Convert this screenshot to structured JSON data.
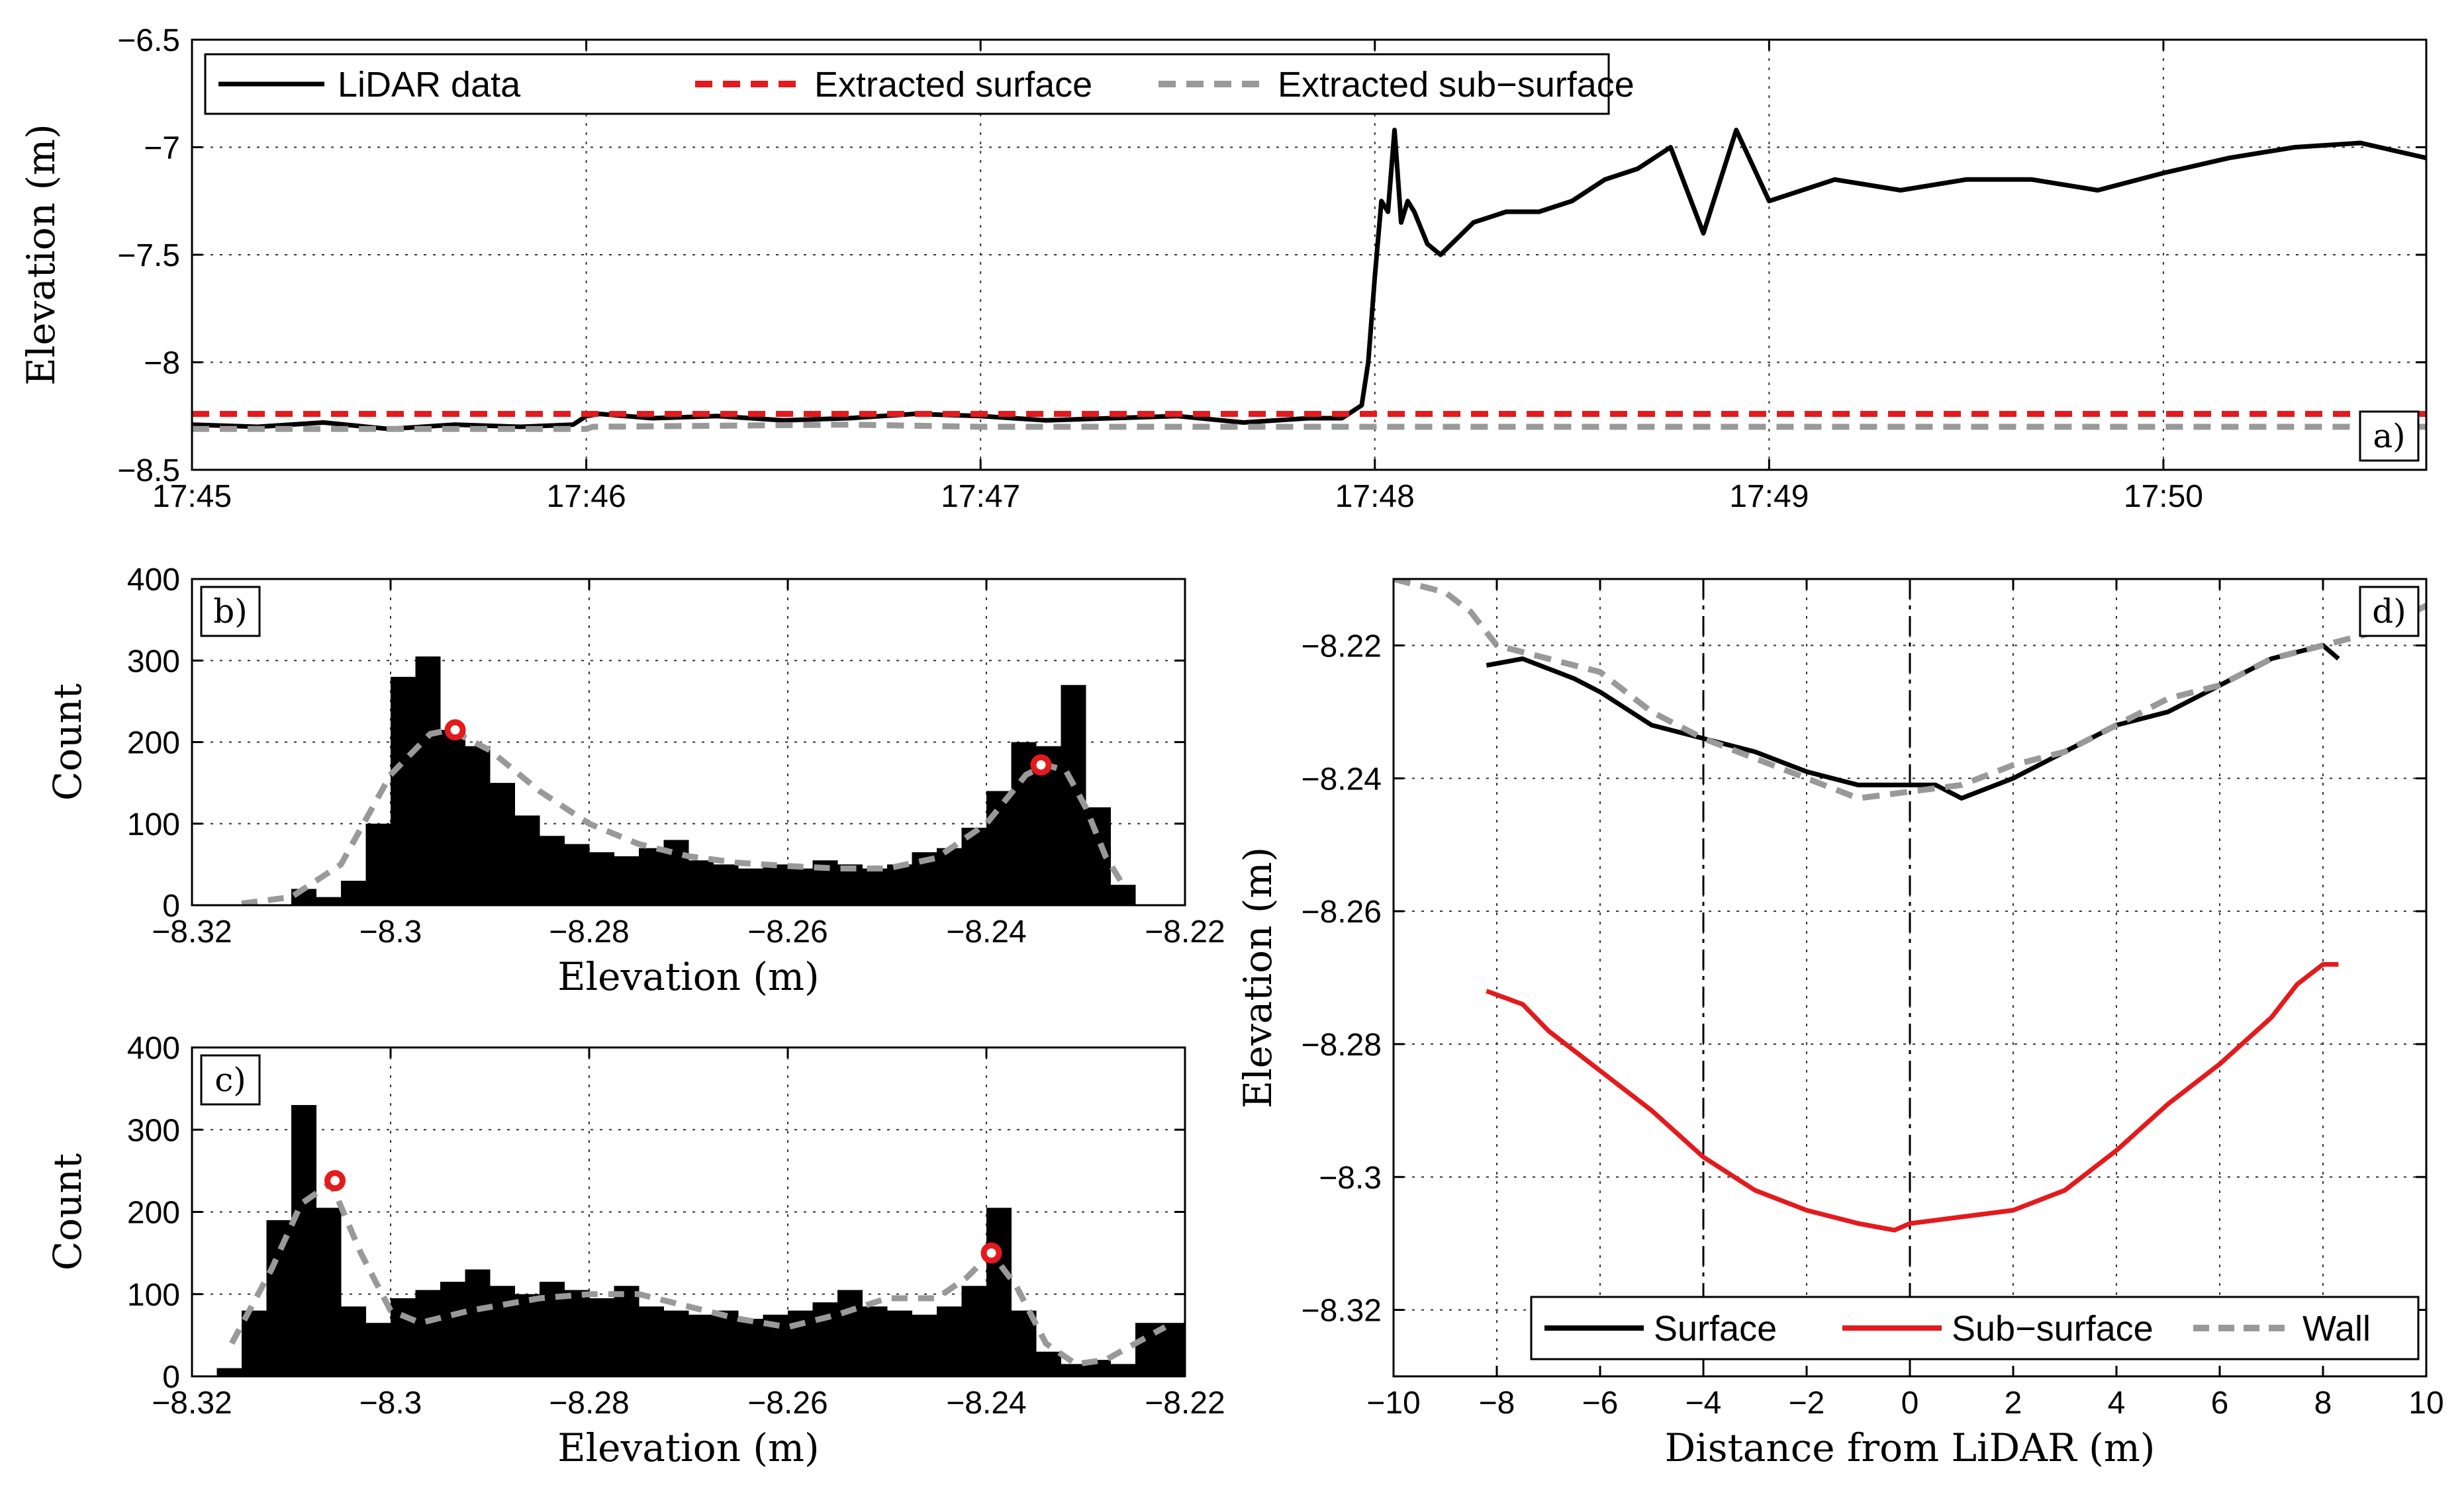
{
  "chart_data": [
    {
      "id": "a",
      "type": "line",
      "panel_label": "a)",
      "ylabel": "Elevation (m)",
      "xlabel": "",
      "xlim": [
        0,
        340
      ],
      "ylim": [
        -8.5,
        -6.5
      ],
      "grid": true,
      "x_ticks": [
        {
          "value": 0,
          "label": "17:45"
        },
        {
          "value": 60,
          "label": "17:46"
        },
        {
          "value": 120,
          "label": "17:47"
        },
        {
          "value": 180,
          "label": "17:48"
        },
        {
          "value": 240,
          "label": "17:49"
        },
        {
          "value": 300,
          "label": "17:50"
        }
      ],
      "y_ticks": [
        {
          "value": -6.5,
          "label": "−6.5"
        },
        {
          "value": -7,
          "label": "−7"
        },
        {
          "value": -7.5,
          "label": "−7.5"
        },
        {
          "value": -8,
          "label": "−8"
        },
        {
          "value": -8.5,
          "label": "−8.5"
        }
      ],
      "legend": {
        "position": "top-left",
        "entries": [
          {
            "name": "LiDAR data",
            "color": "#000000",
            "style": "solid"
          },
          {
            "name": "Extracted surface",
            "color": "#e41a1c",
            "style": "dashed"
          },
          {
            "name": "Extracted sub−surface",
            "color": "#999999",
            "style": "dashed"
          }
        ]
      },
      "series": [
        {
          "name": "LiDAR data",
          "color": "#000000",
          "style": "solid",
          "x": [
            0,
            10,
            20,
            30,
            40,
            50,
            58,
            60,
            62,
            70,
            80,
            90,
            100,
            110,
            120,
            130,
            140,
            150,
            160,
            170,
            175,
            178,
            179,
            180,
            181,
            182,
            183,
            184,
            185,
            186,
            188,
            190,
            195,
            200,
            205,
            210,
            215,
            220,
            225,
            230,
            235,
            240,
            250,
            260,
            270,
            280,
            290,
            300,
            310,
            320,
            330,
            340
          ],
          "y": [
            -8.29,
            -8.3,
            -8.28,
            -8.31,
            -8.29,
            -8.3,
            -8.29,
            -8.25,
            -8.24,
            -8.26,
            -8.25,
            -8.27,
            -8.26,
            -8.24,
            -8.25,
            -8.27,
            -8.26,
            -8.25,
            -8.28,
            -8.26,
            -8.26,
            -8.2,
            -8.0,
            -7.6,
            -7.25,
            -7.3,
            -6.92,
            -7.35,
            -7.25,
            -7.3,
            -7.45,
            -7.5,
            -7.35,
            -7.3,
            -7.3,
            -7.25,
            -7.15,
            -7.1,
            -7.0,
            -7.4,
            -6.92,
            -7.25,
            -7.15,
            -7.2,
            -7.15,
            -7.15,
            -7.2,
            -7.12,
            -7.05,
            -7.0,
            -6.98,
            -7.05
          ]
        },
        {
          "name": "Extracted surface",
          "color": "#e41a1c",
          "style": "dashed",
          "x": [
            0,
            340
          ],
          "y": [
            -8.24,
            -8.24
          ]
        },
        {
          "name": "Extracted sub−surface",
          "color": "#999999",
          "style": "dashed",
          "x": [
            0,
            60,
            61,
            100,
            120,
            150,
            180,
            340
          ],
          "y": [
            -8.31,
            -8.31,
            -8.3,
            -8.29,
            -8.3,
            -8.3,
            -8.3,
            -8.3
          ]
        }
      ]
    },
    {
      "id": "b",
      "type": "bar",
      "panel_label": "b)",
      "xlabel": "Elevation (m)",
      "ylabel": "Count",
      "xlim": [
        -8.32,
        -8.22
      ],
      "ylim": [
        0,
        400
      ],
      "grid": true,
      "x_ticks": [
        {
          "value": -8.32,
          "label": "−8.32"
        },
        {
          "value": -8.3,
          "label": "−8.3"
        },
        {
          "value": -8.28,
          "label": "−8.28"
        },
        {
          "value": -8.26,
          "label": "−8.26"
        },
        {
          "value": -8.24,
          "label": "−8.24"
        },
        {
          "value": -8.22,
          "label": "−8.22"
        }
      ],
      "y_ticks": [
        {
          "value": 0,
          "label": "0"
        },
        {
          "value": 100,
          "label": "100"
        },
        {
          "value": 200,
          "label": "200"
        },
        {
          "value": 300,
          "label": "300"
        },
        {
          "value": 400,
          "label": "400"
        }
      ],
      "bin_width": 0.0025,
      "bin_centers": [
        -8.30875,
        -8.30625,
        -8.30375,
        -8.30125,
        -8.29875,
        -8.29625,
        -8.29375,
        -8.29125,
        -8.28875,
        -8.28625,
        -8.28375,
        -8.28125,
        -8.27875,
        -8.27625,
        -8.27375,
        -8.27125,
        -8.26875,
        -8.26625,
        -8.26375,
        -8.26125,
        -8.25875,
        -8.25625,
        -8.25375,
        -8.25125,
        -8.24875,
        -8.24625,
        -8.24375,
        -8.24125,
        -8.23875,
        -8.23625,
        -8.23375,
        -8.23125,
        -8.22875,
        -8.22625
      ],
      "values": [
        20,
        10,
        30,
        100,
        280,
        305,
        215,
        195,
        150,
        110,
        85,
        75,
        65,
        60,
        70,
        80,
        55,
        50,
        45,
        50,
        45,
        55,
        50,
        45,
        50,
        65,
        70,
        95,
        140,
        200,
        195,
        270,
        120,
        25
      ],
      "density": {
        "color": "#999999",
        "style": "dashed",
        "x": [
          -8.315,
          -8.31,
          -8.305,
          -8.3,
          -8.296,
          -8.294,
          -8.29,
          -8.285,
          -8.28,
          -8.275,
          -8.27,
          -8.265,
          -8.26,
          -8.255,
          -8.25,
          -8.245,
          -8.24,
          -8.236,
          -8.234,
          -8.232,
          -8.23,
          -8.228,
          -8.226
        ],
        "y": [
          2,
          10,
          50,
          160,
          210,
          215,
          190,
          140,
          100,
          75,
          60,
          52,
          48,
          45,
          45,
          58,
          100,
          160,
          172,
          165,
          120,
          60,
          20
        ]
      },
      "peaks": [
        {
          "x": -8.2935,
          "y": 215
        },
        {
          "x": -8.2345,
          "y": 172
        }
      ]
    },
    {
      "id": "c",
      "type": "bar",
      "panel_label": "c)",
      "xlabel": "Elevation (m)",
      "ylabel": "Count",
      "xlim": [
        -8.32,
        -8.22
      ],
      "ylim": [
        0,
        400
      ],
      "grid": true,
      "x_ticks": [
        {
          "value": -8.32,
          "label": "−8.32"
        },
        {
          "value": -8.3,
          "label": "−8.3"
        },
        {
          "value": -8.28,
          "label": "−8.28"
        },
        {
          "value": -8.26,
          "label": "−8.26"
        },
        {
          "value": -8.24,
          "label": "−8.24"
        },
        {
          "value": -8.22,
          "label": "−8.22"
        }
      ],
      "y_ticks": [
        {
          "value": 0,
          "label": "0"
        },
        {
          "value": 100,
          "label": "100"
        },
        {
          "value": 200,
          "label": "200"
        },
        {
          "value": 300,
          "label": "300"
        },
        {
          "value": 400,
          "label": "400"
        }
      ],
      "bin_width": 0.0025,
      "bin_centers": [
        -8.31625,
        -8.31375,
        -8.31125,
        -8.30875,
        -8.30625,
        -8.30375,
        -8.30125,
        -8.29875,
        -8.29625,
        -8.29375,
        -8.29125,
        -8.28875,
        -8.28625,
        -8.28375,
        -8.28125,
        -8.27875,
        -8.27625,
        -8.27375,
        -8.27125,
        -8.26875,
        -8.26625,
        -8.26375,
        -8.26125,
        -8.25875,
        -8.25625,
        -8.25375,
        -8.25125,
        -8.24875,
        -8.24625,
        -8.24375,
        -8.24125,
        -8.23875,
        -8.23625,
        -8.23375,
        -8.23125,
        -8.22875,
        -8.22625,
        -8.22375,
        -8.22125
      ],
      "values": [
        10,
        80,
        190,
        330,
        205,
        85,
        65,
        95,
        105,
        115,
        130,
        110,
        100,
        115,
        105,
        95,
        110,
        85,
        80,
        75,
        80,
        70,
        75,
        80,
        90,
        105,
        85,
        80,
        75,
        85,
        110,
        205,
        80,
        30,
        15,
        20,
        15,
        65,
        65
      ],
      "density": {
        "color": "#999999",
        "style": "dashed",
        "x": [
          -8.316,
          -8.312,
          -8.309,
          -8.306,
          -8.303,
          -8.3,
          -8.297,
          -8.292,
          -8.285,
          -8.28,
          -8.275,
          -8.27,
          -8.265,
          -8.26,
          -8.255,
          -8.25,
          -8.245,
          -8.242,
          -8.2395,
          -8.237,
          -8.234,
          -8.231,
          -8.228,
          -8.225,
          -8.222
        ],
        "y": [
          40,
          130,
          210,
          235,
          150,
          80,
          65,
          80,
          95,
          100,
          100,
          85,
          70,
          60,
          75,
          95,
          95,
          120,
          150,
          110,
          40,
          15,
          20,
          40,
          60
        ]
      },
      "peaks": [
        {
          "x": -8.3056,
          "y": 238
        },
        {
          "x": -8.2395,
          "y": 150
        }
      ]
    },
    {
      "id": "d",
      "type": "line",
      "panel_label": "d)",
      "xlabel": "Distance from LiDAR (m)",
      "ylabel": "Elevation (m)",
      "xlim": [
        -10,
        10
      ],
      "ylim": [
        -8.33,
        -8.21
      ],
      "grid": true,
      "x_ticks": [
        {
          "value": -10,
          "label": "−10"
        },
        {
          "value": -8,
          "label": "−8"
        },
        {
          "value": -6,
          "label": "−6"
        },
        {
          "value": -4,
          "label": "−4"
        },
        {
          "value": -2,
          "label": "−2"
        },
        {
          "value": 0,
          "label": "0"
        },
        {
          "value": 2,
          "label": "2"
        },
        {
          "value": 4,
          "label": "4"
        },
        {
          "value": 6,
          "label": "6"
        },
        {
          "value": 8,
          "label": "8"
        },
        {
          "value": 10,
          "label": "10"
        }
      ],
      "y_ticks": [
        {
          "value": -8.22,
          "label": "−8.22"
        },
        {
          "value": -8.24,
          "label": "−8.24"
        },
        {
          "value": -8.26,
          "label": "−8.26"
        },
        {
          "value": -8.28,
          "label": "−8.28"
        },
        {
          "value": -8.3,
          "label": "−8.3"
        },
        {
          "value": -8.32,
          "label": "−8.32"
        }
      ],
      "vlines": [
        -4,
        0
      ],
      "legend": {
        "position": "bottom",
        "entries": [
          {
            "name": "Surface",
            "color": "#000000",
            "style": "solid"
          },
          {
            "name": "Sub−surface",
            "color": "#e41a1c",
            "style": "solid"
          },
          {
            "name": "Wall",
            "color": "#999999",
            "style": "dashed"
          }
        ]
      },
      "series": [
        {
          "name": "Surface",
          "color": "#000000",
          "style": "solid",
          "x": [
            -8.2,
            -7.5,
            -6.5,
            -6,
            -5,
            -4,
            -3,
            -2,
            -1,
            0,
            0.5,
            1,
            2,
            3,
            4,
            5,
            6,
            7,
            8,
            8.3
          ],
          "y": [
            -8.223,
            -8.222,
            -8.225,
            -8.227,
            -8.232,
            -8.234,
            -8.236,
            -8.239,
            -8.241,
            -8.241,
            -8.241,
            -8.243,
            -8.24,
            -8.236,
            -8.232,
            -8.23,
            -8.226,
            -8.222,
            -8.22,
            -8.222
          ]
        },
        {
          "name": "Sub−surface",
          "color": "#e41a1c",
          "style": "solid",
          "x": [
            -8.2,
            -7.5,
            -7,
            -6,
            -5,
            -4,
            -3,
            -2,
            -1,
            -0.3,
            0,
            1,
            2,
            3,
            4,
            5,
            6,
            7,
            7.5,
            8,
            8.3
          ],
          "y": [
            -8.272,
            -8.274,
            -8.278,
            -8.284,
            -8.29,
            -8.297,
            -8.302,
            -8.305,
            -8.307,
            -8.308,
            -8.307,
            -8.306,
            -8.305,
            -8.302,
            -8.296,
            -8.289,
            -8.283,
            -8.276,
            -8.271,
            -8.268,
            -8.268
          ]
        },
        {
          "name": "Wall",
          "color": "#999999",
          "style": "dashed",
          "x": [
            -10,
            -9,
            -8.5,
            -8,
            -7,
            -6,
            -5,
            -4,
            -3,
            -2,
            -1,
            0,
            1,
            2,
            3,
            4,
            5,
            6,
            7,
            8,
            9,
            10
          ],
          "y": [
            -8.21,
            -8.212,
            -8.215,
            -8.22,
            -8.222,
            -8.224,
            -8.23,
            -8.234,
            -8.237,
            -8.24,
            -8.243,
            -8.242,
            -8.241,
            -8.238,
            -8.236,
            -8.232,
            -8.228,
            -8.226,
            -8.222,
            -8.22,
            -8.218,
            -8.214
          ]
        }
      ]
    }
  ]
}
